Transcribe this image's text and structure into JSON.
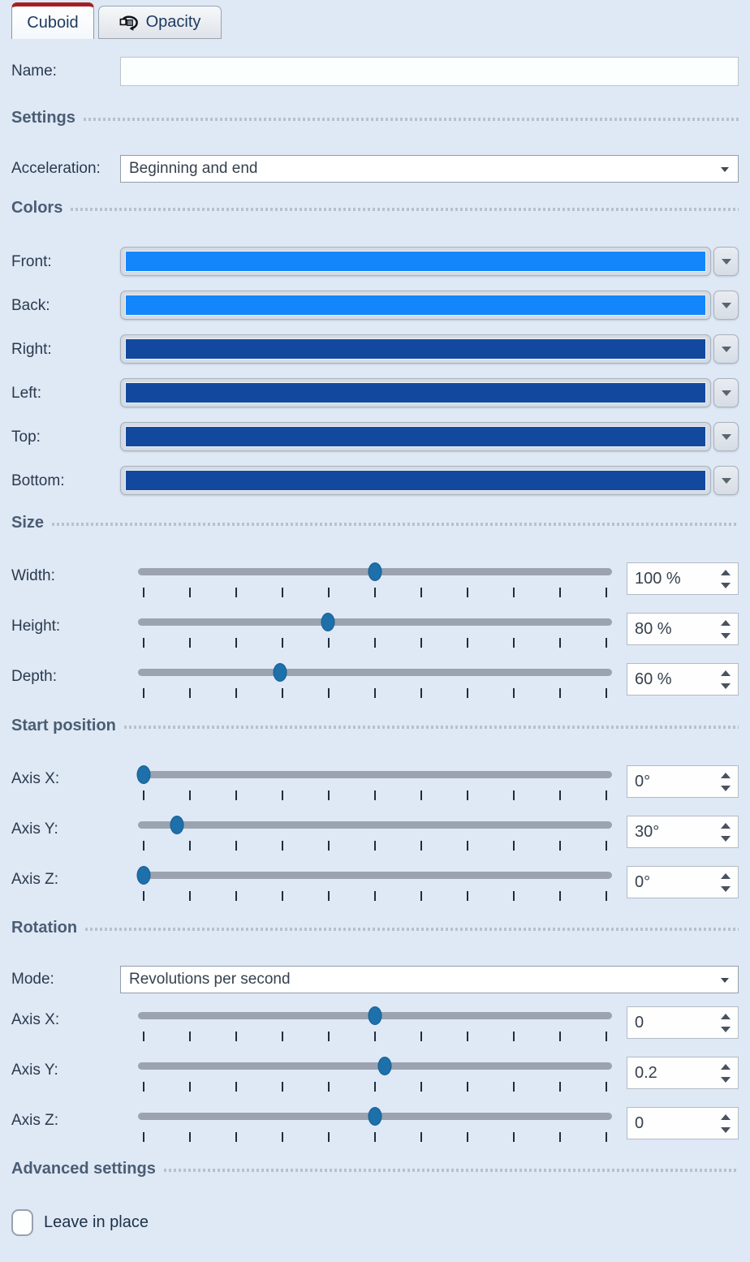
{
  "tabs": [
    {
      "label": "Cuboid",
      "active": true
    },
    {
      "label": "Opacity",
      "active": false,
      "icon": "rotation-icon"
    }
  ],
  "name_field": {
    "label": "Name:",
    "value": ""
  },
  "section_titles": {
    "settings": "Settings",
    "colors": "Colors",
    "size": "Size",
    "start_position": "Start position",
    "rotation": "Rotation",
    "advanced": "Advanced settings"
  },
  "acceleration": {
    "label": "Acceleration:",
    "value": "Beginning and end"
  },
  "color_rows": [
    {
      "label": "Front:",
      "color": "#1486fb"
    },
    {
      "label": "Back:",
      "color": "#1486fb"
    },
    {
      "label": "Right:",
      "color": "#12499e"
    },
    {
      "label": "Left:",
      "color": "#12499e"
    },
    {
      "label": "Top:",
      "color": "#12499e"
    },
    {
      "label": "Bottom:",
      "color": "#12499e"
    }
  ],
  "size_sliders": [
    {
      "label": "Width:",
      "value": "100 %",
      "handle_percent": 50
    },
    {
      "label": "Height:",
      "value": "80 %",
      "handle_percent": 40
    },
    {
      "label": "Depth:",
      "value": "60 %",
      "handle_percent": 30
    }
  ],
  "start_sliders": [
    {
      "label": "Axis X:",
      "value": "0°",
      "handle_percent": 1.2
    },
    {
      "label": "Axis Y:",
      "value": "30°",
      "handle_percent": 8.3
    },
    {
      "label": "Axis Z:",
      "value": "0°",
      "handle_percent": 1.2
    }
  ],
  "rotation_mode": {
    "label": "Mode:",
    "value": "Revolutions per second"
  },
  "rotation_sliders": [
    {
      "label": "Axis X:",
      "value": "0",
      "handle_percent": 50
    },
    {
      "label": "Axis Y:",
      "value": "0.2",
      "handle_percent": 52
    },
    {
      "label": "Axis Z:",
      "value": "0",
      "handle_percent": 50
    }
  ],
  "advanced": {
    "checkbox_label": "Leave in place",
    "checked": false
  },
  "ui_colors": {
    "active_tab_accent": "#a32022",
    "panel_background": "#dfe8f5",
    "slider_handle": "#1d70aa",
    "front_back_blue": "#1486fb",
    "side_dark_blue": "#12499e"
  }
}
